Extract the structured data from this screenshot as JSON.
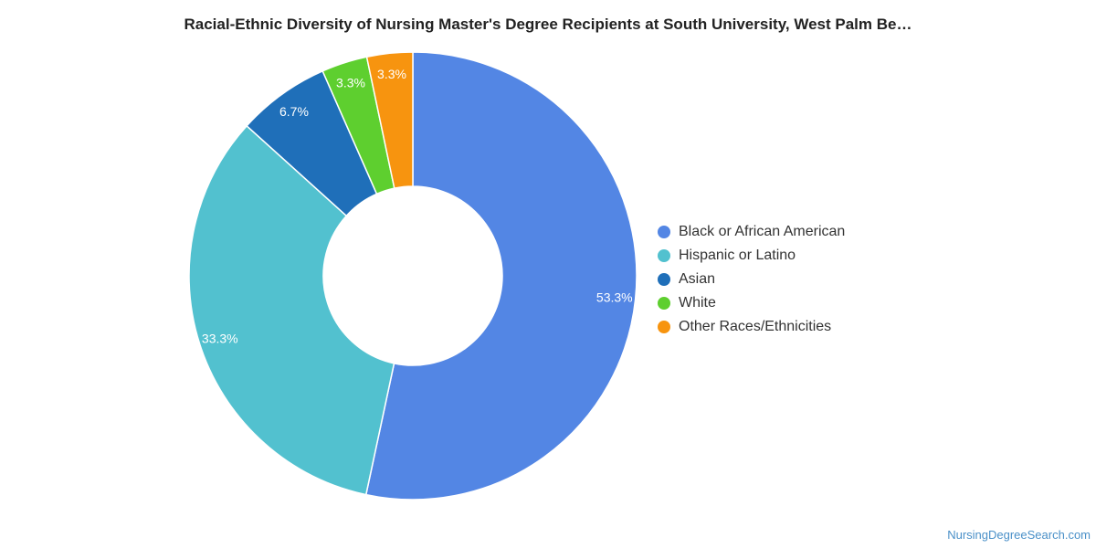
{
  "chart_data": {
    "type": "pie",
    "title": "Racial-Ethnic Diversity of Nursing Master's Degree Recipients at South University, West Palm Be…",
    "donut": true,
    "legend_position": "right",
    "slices": [
      {
        "name": "Black or African American",
        "value": 53.3,
        "label": "53.3%",
        "color": "#5386e4"
      },
      {
        "name": "Hispanic or Latino",
        "value": 33.3,
        "label": "33.3%",
        "color": "#52c1cf"
      },
      {
        "name": "Asian",
        "value": 6.7,
        "label": "6.7%",
        "color": "#1f6fb9"
      },
      {
        "name": "White",
        "value": 3.3,
        "label": "3.3%",
        "color": "#5ecf2f"
      },
      {
        "name": "Other Races/Ethnicities",
        "value": 3.3,
        "label": "3.3%",
        "color": "#f7940f"
      }
    ]
  },
  "credit": "NursingDegreeSearch.com"
}
